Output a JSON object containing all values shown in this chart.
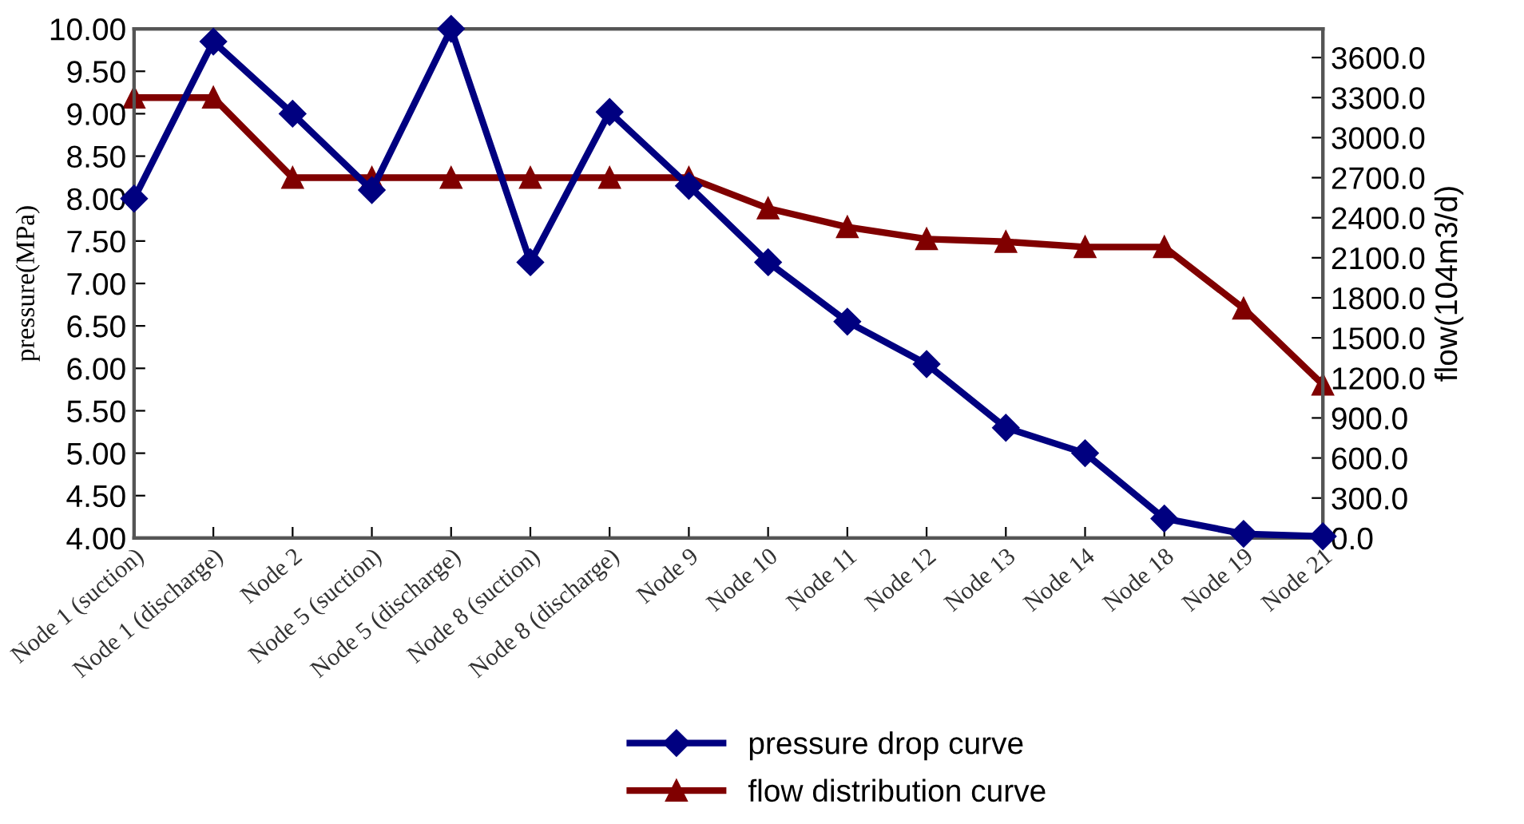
{
  "chart_data": {
    "type": "line",
    "ylabel": "pressure(MPa)",
    "y2label": "flow(104m3/d)",
    "categories": [
      "Node 1 (suction)",
      "Node 1 (discharge)",
      "Node 2",
      "Node 5 (suction)",
      "Node 5 (discharge)",
      "Node 8 (suction)",
      "Node 8 (discharge)",
      "Node 9",
      "Node 10",
      "Node 11",
      "Node 12",
      "Node 13",
      "Node 14",
      "Node 18",
      "Node 19",
      "Node 21"
    ],
    "series": [
      {
        "name": "pressure drop curve",
        "color": "#000080",
        "marker": "diamond",
        "values": [
          8.0,
          9.85,
          9.0,
          8.1,
          10.0,
          7.25,
          9.02,
          8.15,
          7.25,
          6.55,
          6.05,
          5.3,
          5.0,
          4.23,
          4.05,
          4.02
        ]
      },
      {
        "name": "flow distribution curve",
        "color": "#800000",
        "marker": "triangle",
        "axis": "y2",
        "values": [
          3300,
          3300,
          2700,
          2700,
          2700,
          2700,
          2700,
          2700,
          2470,
          2330,
          2240,
          2220,
          2180,
          2180,
          1720,
          1150
        ]
      }
    ],
    "ylim": [
      4.0,
      10.0
    ],
    "yticks": [
      {
        "value": 4,
        "label": "4.00"
      },
      {
        "value": 4.5,
        "label": "4.50"
      },
      {
        "value": 5,
        "label": "5.00"
      },
      {
        "value": 5.5,
        "label": "5.50"
      },
      {
        "value": 6,
        "label": "6.00"
      },
      {
        "value": 6.5,
        "label": "6.50"
      },
      {
        "value": 7,
        "label": "7.00"
      },
      {
        "value": 7.5,
        "label": "7.50"
      },
      {
        "value": 8,
        "label": "8.00"
      },
      {
        "value": 8.5,
        "label": "8.50"
      },
      {
        "value": 9,
        "label": "9.00"
      },
      {
        "value": 9.5,
        "label": "9.50"
      },
      {
        "value": 10,
        "label": "10.00"
      }
    ],
    "y2lim": [
      0,
      3815
    ],
    "y2ticks": [
      {
        "value": 0,
        "label": "0.0"
      },
      {
        "value": 300,
        "label": "300.0"
      },
      {
        "value": 600,
        "label": "600.0"
      },
      {
        "value": 900,
        "label": "900.0"
      },
      {
        "value": 1200,
        "label": "1200.0"
      },
      {
        "value": 1500,
        "label": "1500.0"
      },
      {
        "value": 1800,
        "label": "1800.0"
      },
      {
        "value": 2100,
        "label": "2100.0"
      },
      {
        "value": 2400,
        "label": "2400.0"
      },
      {
        "value": 2700,
        "label": "2700.0"
      },
      {
        "value": 3000,
        "label": "3000.0"
      },
      {
        "value": 3300,
        "label": "3300.0"
      },
      {
        "value": 3600,
        "label": "3600.0"
      }
    ],
    "grid": false,
    "legend": "bottom",
    "line_style": "solid"
  }
}
